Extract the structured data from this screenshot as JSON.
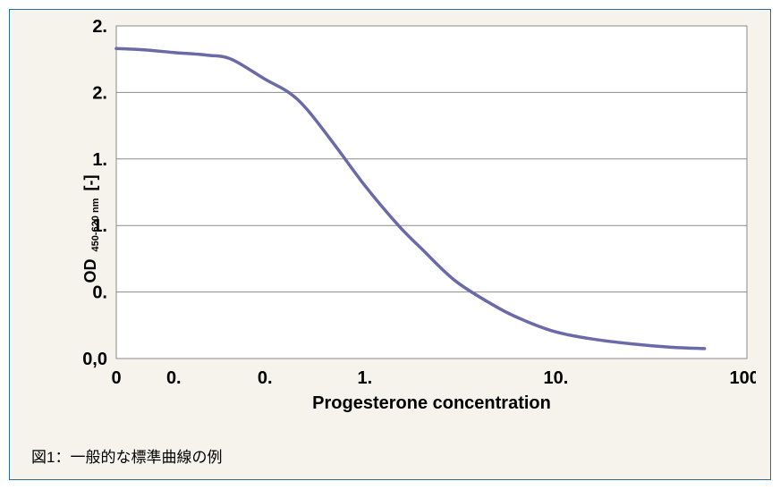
{
  "figure": {
    "type": "line",
    "background_color": "#f5f3ec",
    "outer_border_color": "#2b6b9a",
    "plot": {
      "bg_color": "#ffffff",
      "border_color": "#8a8a8a",
      "grid_color": "#8a8a8a",
      "grid_width": 1,
      "x": {
        "scale": "log",
        "min": 0.05,
        "max": 100
      },
      "y": {
        "scale": "linear",
        "min": 0,
        "max": 2.5
      },
      "y_ticks": [
        {
          "v": 0.0,
          "label": "0,0"
        },
        {
          "v": 0.5,
          "label": "0."
        },
        {
          "v": 1.0,
          "label": "1."
        },
        {
          "v": 1.5,
          "label": "1."
        },
        {
          "v": 2.0,
          "label": "2."
        },
        {
          "v": 2.5,
          "label": "2."
        }
      ],
      "x_ticks": [
        {
          "v": 0.05,
          "label": "0"
        },
        {
          "v": 0.1,
          "label": "0."
        },
        {
          "v": 0.3,
          "label": "0."
        },
        {
          "v": 1.0,
          "label": "1."
        },
        {
          "v": 10.0,
          "label": "10."
        },
        {
          "v": 100.0,
          "label": "100."
        }
      ],
      "series": {
        "color": "#6a6aa9",
        "width": 3.5,
        "points": [
          {
            "x": 0.05,
            "y": 2.33
          },
          {
            "x": 0.07,
            "y": 2.32
          },
          {
            "x": 0.1,
            "y": 2.3
          },
          {
            "x": 0.15,
            "y": 2.28
          },
          {
            "x": 0.2,
            "y": 2.25
          },
          {
            "x": 0.3,
            "y": 2.1
          },
          {
            "x": 0.4,
            "y": 2.0
          },
          {
            "x": 0.5,
            "y": 1.87
          },
          {
            "x": 0.7,
            "y": 1.6
          },
          {
            "x": 1.0,
            "y": 1.3
          },
          {
            "x": 1.5,
            "y": 1.0
          },
          {
            "x": 2.0,
            "y": 0.82
          },
          {
            "x": 3.0,
            "y": 0.58
          },
          {
            "x": 5.0,
            "y": 0.38
          },
          {
            "x": 7.0,
            "y": 0.28
          },
          {
            "x": 10.0,
            "y": 0.2
          },
          {
            "x": 15.0,
            "y": 0.15
          },
          {
            "x": 25.0,
            "y": 0.11
          },
          {
            "x": 40.0,
            "y": 0.085
          },
          {
            "x": 60.0,
            "y": 0.075
          }
        ]
      }
    },
    "x_label": "Progesterone concentration",
    "y_label_main": "OD",
    "y_label_sub": "450-620 nm",
    "y_label_unit": "[-]",
    "tick_font_size": 20,
    "tick_font_weight": "700",
    "axis_label_font_size": 20,
    "axis_label_font_weight": "700",
    "caption": "図1：一般的な標準曲線の例"
  }
}
